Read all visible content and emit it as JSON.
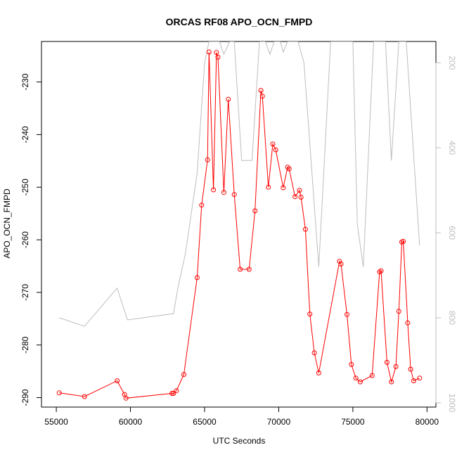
{
  "chart_data": {
    "type": "line",
    "title": "ORCAS RF08 APO_OCN_FMPD",
    "xlabel": "UTC Seconds",
    "ylabel": "APO_OCN_FMPD",
    "xlim": [
      54000,
      80600
    ],
    "ylim": [
      -291.8,
      -222.3
    ],
    "x_ticks": [
      55000,
      60000,
      65000,
      70000,
      75000,
      80000
    ],
    "x_tick_labels": [
      "55000",
      "60000",
      "65000",
      "70000",
      "75000",
      "80000"
    ],
    "y_ticks": [
      -290,
      -280,
      -270,
      -260,
      -250,
      -240,
      -230
    ],
    "y_tick_labels": [
      "-290",
      "-280",
      "-270",
      "-260",
      "-250",
      "-240",
      "-230"
    ],
    "y2_ticks": [
      200,
      400,
      600,
      800,
      1000
    ],
    "y2_tick_labels": [
      "200",
      "400",
      "600",
      "800",
      "1000"
    ],
    "y2_lim": [
      1010,
      150
    ],
    "y2_reversed": true,
    "colors": {
      "main": "#ff0000",
      "secondary": "#bdbdbd",
      "axis": "#000000"
    },
    "series": [
      {
        "axis": "left",
        "style": "line+points",
        "color": "#ff0000",
        "points": [
          [
            55200,
            -289.1
          ],
          [
            56900,
            -289.8
          ],
          [
            59100,
            -286.8
          ],
          [
            59600,
            -289.4
          ],
          [
            59700,
            -290.1
          ],
          [
            62800,
            -289.2
          ],
          [
            62900,
            -289.2
          ],
          [
            63100,
            -288.7
          ],
          [
            63600,
            -285.6
          ],
          [
            64500,
            -267.2
          ],
          [
            64800,
            -253.4
          ],
          [
            65200,
            -244.8
          ],
          [
            65300,
            -224.3
          ],
          [
            65600,
            -250.5
          ],
          [
            65800,
            -224.4
          ],
          [
            65900,
            -225.3
          ],
          [
            66300,
            -251.0
          ],
          [
            66600,
            -233.3
          ],
          [
            67000,
            -251.4
          ],
          [
            67400,
            -265.6
          ],
          [
            68000,
            -265.6
          ],
          [
            68400,
            -254.5
          ],
          [
            68800,
            -231.6
          ],
          [
            68900,
            -232.7
          ],
          [
            69300,
            -250.0
          ],
          [
            69600,
            -241.8
          ],
          [
            69800,
            -242.9
          ],
          [
            70300,
            -250.1
          ],
          [
            70600,
            -246.2
          ],
          [
            70700,
            -246.5
          ],
          [
            71100,
            -251.8
          ],
          [
            71400,
            -250.6
          ],
          [
            71500,
            -251.9
          ],
          [
            71800,
            -258.0
          ],
          [
            72100,
            -274.1
          ],
          [
            72400,
            -281.5
          ],
          [
            72700,
            -285.3
          ],
          [
            74100,
            -264.1
          ],
          [
            74200,
            -264.6
          ],
          [
            74600,
            -274.2
          ],
          [
            74900,
            -283.7
          ],
          [
            75200,
            -286.3
          ],
          [
            75500,
            -287.0
          ],
          [
            76300,
            -285.8
          ],
          [
            76800,
            -266.1
          ],
          [
            76900,
            -265.9
          ],
          [
            77300,
            -283.3
          ],
          [
            77600,
            -287.0
          ],
          [
            77900,
            -284.1
          ],
          [
            78100,
            -273.6
          ],
          [
            78300,
            -260.4
          ],
          [
            78400,
            -260.3
          ],
          [
            78700,
            -275.8
          ],
          [
            78900,
            -284.6
          ],
          [
            79100,
            -286.8
          ],
          [
            79500,
            -286.3
          ]
        ]
      },
      {
        "axis": "right",
        "style": "line",
        "color": "#bdbdbd",
        "points": [
          [
            55200,
            800
          ],
          [
            56900,
            820
          ],
          [
            59100,
            730
          ],
          [
            59800,
            805
          ],
          [
            62900,
            790
          ],
          [
            63200,
            730
          ],
          [
            63700,
            650
          ],
          [
            64500,
            460
          ],
          [
            65000,
            200
          ],
          [
            65300,
            150
          ],
          [
            65700,
            150
          ],
          [
            66000,
            150
          ],
          [
            66300,
            180
          ],
          [
            66700,
            150
          ],
          [
            67000,
            150
          ],
          [
            67500,
            430
          ],
          [
            68200,
            430
          ],
          [
            68700,
            150
          ],
          [
            69100,
            150
          ],
          [
            69400,
            180
          ],
          [
            69700,
            150
          ],
          [
            70100,
            150
          ],
          [
            70300,
            175
          ],
          [
            70600,
            150
          ],
          [
            71000,
            150
          ],
          [
            71300,
            150
          ],
          [
            71700,
            200
          ],
          [
            72700,
            680
          ],
          [
            73500,
            150
          ],
          [
            74500,
            150
          ],
          [
            75000,
            150
          ],
          [
            75300,
            580
          ],
          [
            75700,
            680
          ],
          [
            76400,
            150
          ],
          [
            76800,
            150
          ],
          [
            77200,
            150
          ],
          [
            77600,
            430
          ],
          [
            78100,
            150
          ],
          [
            78600,
            150
          ],
          [
            79500,
            630
          ]
        ]
      }
    ]
  }
}
